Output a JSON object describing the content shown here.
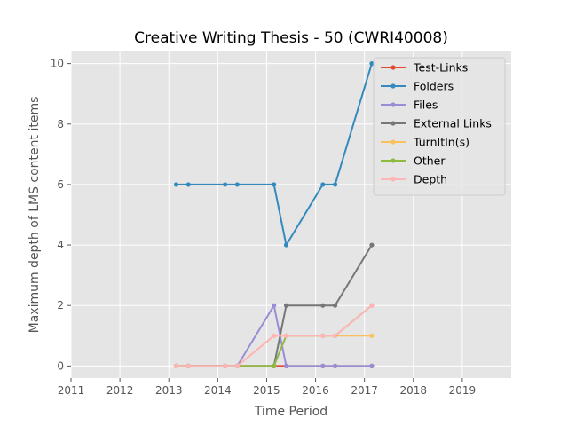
{
  "chart_data": {
    "type": "line",
    "title": "Creative Writing Thesis - 50 (CWRI40008)",
    "xlabel": "Time Period",
    "ylabel": "Maximum depth of LMS content items",
    "xlim": [
      2011,
      2020
    ],
    "ylim": [
      -0.4,
      10.4
    ],
    "xticks": [
      2011,
      2012,
      2013,
      2014,
      2015,
      2016,
      2017,
      2018,
      2019
    ],
    "yticks": [
      0,
      2,
      4,
      6,
      8,
      10
    ],
    "x": [
      2013.15,
      2013.4,
      2014.15,
      2014.4,
      2015.15,
      2015.4,
      2016.15,
      2016.4,
      2017.15
    ],
    "grid": true,
    "legend_position": "top-right",
    "series": [
      {
        "name": "Test-Links",
        "color": "#E24A33",
        "values": [
          0,
          0,
          0,
          0,
          0,
          0,
          0,
          0,
          0
        ]
      },
      {
        "name": "Folders",
        "color": "#348ABD",
        "values": [
          6,
          6,
          6,
          6,
          6,
          4,
          6,
          6,
          10
        ]
      },
      {
        "name": "Files",
        "color": "#988ED5",
        "values": [
          0,
          0,
          0,
          0,
          2,
          0,
          0,
          0,
          0
        ]
      },
      {
        "name": "External Links",
        "color": "#777777",
        "values": [
          0,
          0,
          0,
          0,
          0,
          2,
          2,
          2,
          4
        ]
      },
      {
        "name": "TurnItIn(s)",
        "color": "#FBC15E",
        "values": [
          0,
          0,
          0,
          0,
          1,
          1,
          1,
          1,
          1
        ]
      },
      {
        "name": "Other",
        "color": "#8EBA42",
        "values": [
          0,
          0,
          0,
          0,
          0,
          1,
          1,
          1,
          2
        ]
      },
      {
        "name": "Depth",
        "color": "#FFB5B8",
        "values": [
          0,
          0,
          0,
          0,
          1,
          1,
          1,
          1,
          2
        ]
      }
    ]
  }
}
